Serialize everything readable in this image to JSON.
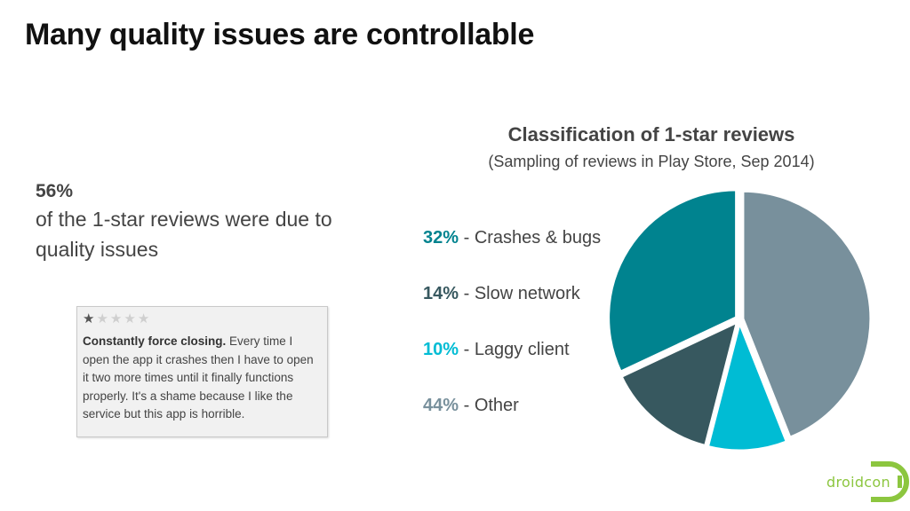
{
  "title": "Many quality issues are controllable",
  "stat": {
    "value": "56%",
    "text": "of the 1-star reviews were due to quality issues"
  },
  "review": {
    "stars_filled": 1,
    "stars_total": 5,
    "headline": "Constantly force closing.",
    "body": "Every time I open the app it crashes then I have to open it two more times until it finally functions properly. It's a shame because I like the service but this app is horrible."
  },
  "logo": {
    "text": "droidcon",
    "color": "#8cc63f"
  },
  "chart_data": {
    "type": "pie",
    "title": "Classification of 1-star reviews",
    "subtitle": "(Sampling of reviews in Play Store, Sep 2014)",
    "slices": [
      {
        "label": "Crashes & bugs",
        "pct_label": "32%",
        "value": 32,
        "color": "#00838f"
      },
      {
        "label": "Slow network",
        "pct_label": "14%",
        "value": 14,
        "color": "#37585f"
      },
      {
        "label": "Laggy client",
        "pct_label": "10%",
        "value": 10,
        "color": "#00bcd4"
      },
      {
        "label": "Other",
        "pct_label": "44%",
        "value": 44,
        "color": "#78909c"
      }
    ],
    "legend_placement": "left"
  }
}
